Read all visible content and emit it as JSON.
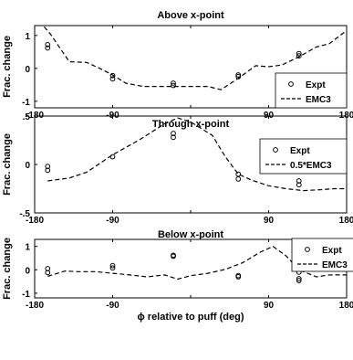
{
  "chart_data": [
    {
      "type": "scatter",
      "title": "Above x-point",
      "ylabel": "Frac. change",
      "xlabel": "",
      "xlim": [
        -180,
        180
      ],
      "ylim": [
        -1.2,
        1.3
      ],
      "xticks": [
        "-180",
        "-90",
        "0",
        "90",
        "180"
      ],
      "yticks": [
        "1",
        "0",
        "-1"
      ],
      "legend_position": "lower-right",
      "series": [
        {
          "name": "Expt",
          "kind": "points",
          "x": [
            -165,
            -165,
            -90,
            -90,
            -20,
            -20,
            55,
            55,
            125,
            125
          ],
          "y": [
            0.72,
            0.62,
            -0.22,
            -0.32,
            -0.45,
            -0.52,
            -0.2,
            -0.25,
            0.45,
            0.38
          ]
        },
        {
          "name": "EMC3",
          "kind": "dashed-line",
          "x": [
            -180,
            -162,
            -140,
            -120,
            -105,
            -90,
            -75,
            -55,
            -35,
            -15,
            0,
            20,
            35,
            55,
            75,
            90,
            105,
            125,
            145,
            160,
            180
          ],
          "y": [
            1.6,
            1.05,
            0.2,
            0.18,
            0.0,
            -0.2,
            -0.45,
            -0.55,
            -0.55,
            -0.55,
            -0.55,
            -0.55,
            -0.65,
            -0.3,
            0.08,
            0.05,
            0.1,
            0.35,
            0.65,
            0.75,
            1.15
          ]
        }
      ]
    },
    {
      "type": "scatter",
      "title": "Through x-point",
      "ylabel": "Frac. change",
      "xlabel": "",
      "xlim": [
        -180,
        180
      ],
      "ylim": [
        -0.5,
        0.5
      ],
      "xticks": [
        "-180",
        "-90",
        "0",
        "90",
        "180"
      ],
      "yticks": [
        ".5",
        "0",
        "-.5"
      ],
      "legend_position": "top-right",
      "series": [
        {
          "name": "Expt",
          "kind": "points",
          "x": [
            -165,
            -165,
            -90,
            -20,
            -20,
            55,
            55,
            125,
            125
          ],
          "y": [
            -0.02,
            -0.06,
            0.08,
            0.32,
            0.28,
            -0.1,
            -0.15,
            -0.17,
            -0.21
          ]
        },
        {
          "name": "0.5*EMC3",
          "kind": "dashed-line",
          "x": [
            -165,
            -140,
            -120,
            -90,
            -60,
            -30,
            -15,
            0,
            25,
            40,
            55,
            70,
            90,
            110,
            130,
            150,
            165,
            180
          ],
          "y": [
            -0.17,
            -0.14,
            -0.08,
            0.1,
            0.25,
            0.42,
            0.48,
            0.44,
            0.3,
            0.08,
            -0.1,
            -0.16,
            -0.22,
            -0.25,
            -0.27,
            -0.26,
            -0.25,
            -0.25
          ]
        }
      ]
    },
    {
      "type": "scatter",
      "title": "Below x-point",
      "ylabel": "Frac. change",
      "xlabel": "ϕ relative to puff (deg)",
      "xlim": [
        -180,
        180
      ],
      "ylim": [
        -1.2,
        1.3
      ],
      "xticks": [
        "-180",
        "-90",
        "0",
        "90",
        "180"
      ],
      "yticks": [
        "1",
        "0",
        "-1"
      ],
      "legend_position": "top-right",
      "series": [
        {
          "name": "Expt",
          "kind": "points",
          "x": [
            -165,
            -165,
            -90,
            -90,
            -20,
            -20,
            55,
            55,
            125,
            125,
            125
          ],
          "y": [
            0.05,
            -0.12,
            0.18,
            0.08,
            0.62,
            0.58,
            -0.25,
            -0.3,
            -0.1,
            -0.38,
            -0.46
          ]
        },
        {
          "name": "EMC3",
          "kind": "dashed-line",
          "x": [
            -165,
            -145,
            -130,
            -110,
            -90,
            -70,
            -50,
            -30,
            -15,
            0,
            20,
            40,
            60,
            80,
            95,
            110,
            125,
            145,
            160,
            180
          ],
          "y": [
            -0.28,
            -0.05,
            -0.08,
            -0.08,
            -0.15,
            -0.22,
            -0.3,
            -0.22,
            -0.4,
            -0.25,
            -0.15,
            0.02,
            0.3,
            0.75,
            1.0,
            0.6,
            0.0,
            -0.3,
            -0.22,
            -0.22
          ]
        }
      ]
    }
  ]
}
